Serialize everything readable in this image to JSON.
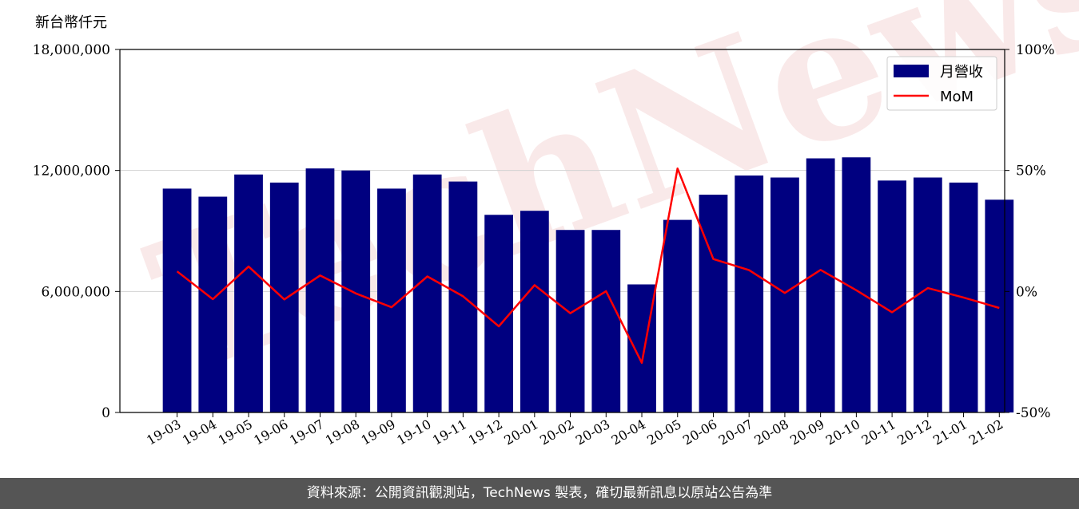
{
  "y_unit_label": "新台幣仟元",
  "footer_text": "資料來源：公開資訊觀測站，TechNews 製表，確切最新訊息以原站公告為準",
  "watermark_text": "TechNews",
  "colors": {
    "bar": "#000080",
    "line": "#ff0000",
    "grid": "#d3d3d3",
    "footer_bg": "#555555"
  },
  "chart_data": {
    "type": "bar",
    "categories": [
      "19-03",
      "19-04",
      "19-05",
      "19-06",
      "19-07",
      "19-08",
      "19-09",
      "19-10",
      "19-11",
      "19-12",
      "20-01",
      "20-02",
      "20-03",
      "20-04",
      "20-05",
      "20-06",
      "20-07",
      "20-08",
      "20-09",
      "20-10",
      "20-11",
      "20-12",
      "21-01",
      "21-02"
    ],
    "series": [
      {
        "name": "月營收",
        "type": "bar",
        "axis": "left",
        "values": [
          11100000,
          10700000,
          11800000,
          11400000,
          12100000,
          12000000,
          11100000,
          11800000,
          11450000,
          9800000,
          10000000,
          9050000,
          9050000,
          6350000,
          9550000,
          10800000,
          11750000,
          11650000,
          12600000,
          12650000,
          11500000,
          11650000,
          11400000,
          10550000
        ]
      },
      {
        "name": "MoM",
        "type": "line",
        "axis": "right",
        "values": [
          8.3,
          -3.2,
          10.3,
          -3.3,
          6.6,
          -0.8,
          -6.5,
          6.2,
          -2.0,
          -14.4,
          2.6,
          -9.0,
          0.1,
          -29.5,
          50.8,
          13.4,
          8.8,
          -0.6,
          8.9,
          0.5,
          -8.6,
          1.4,
          -2.5,
          -6.8
        ]
      }
    ],
    "ylim": [
      0,
      18000000
    ],
    "yticks": [
      "0",
      "6,000,000",
      "12,000,000",
      "18,000,000"
    ],
    "y2lim": [
      -50,
      100
    ],
    "y2ticks": [
      "-50%",
      "0%",
      "50%",
      "100%"
    ],
    "legend_position": "top-right",
    "grid": "horizontal"
  }
}
